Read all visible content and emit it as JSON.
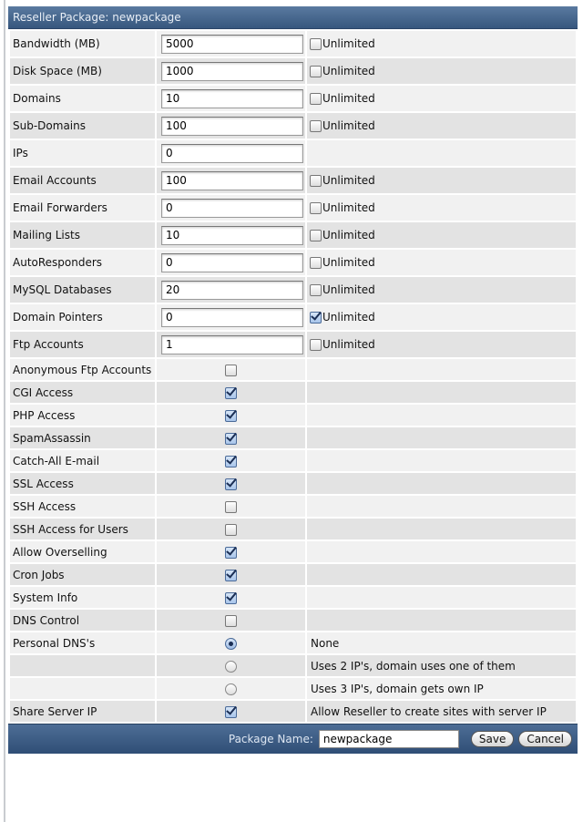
{
  "title": "Reseller Package: newpackage",
  "unlimited_label": "Unlimited",
  "numeric_rows": [
    {
      "label": "Bandwidth (MB)",
      "value": "5000",
      "unlimited": false,
      "has_unlimited": true
    },
    {
      "label": "Disk Space (MB)",
      "value": "1000",
      "unlimited": false,
      "has_unlimited": true
    },
    {
      "label": "Domains",
      "value": "10",
      "unlimited": false,
      "has_unlimited": true
    },
    {
      "label": "Sub-Domains",
      "value": "100",
      "unlimited": false,
      "has_unlimited": true
    },
    {
      "label": "IPs",
      "value": "0",
      "unlimited": false,
      "has_unlimited": false
    },
    {
      "label": "Email Accounts",
      "value": "100",
      "unlimited": false,
      "has_unlimited": true
    },
    {
      "label": "Email Forwarders",
      "value": "0",
      "unlimited": false,
      "has_unlimited": true
    },
    {
      "label": "Mailing Lists",
      "value": "10",
      "unlimited": false,
      "has_unlimited": true
    },
    {
      "label": "AutoResponders",
      "value": "0",
      "unlimited": false,
      "has_unlimited": true
    },
    {
      "label": "MySQL Databases",
      "value": "20",
      "unlimited": false,
      "has_unlimited": true
    },
    {
      "label": "Domain Pointers",
      "value": "0",
      "unlimited": true,
      "has_unlimited": true
    },
    {
      "label": "Ftp Accounts",
      "value": "1",
      "unlimited": false,
      "has_unlimited": true
    }
  ],
  "feature_rows": [
    {
      "label": "Anonymous Ftp Accounts",
      "checked": false
    },
    {
      "label": "CGI Access",
      "checked": true
    },
    {
      "label": "PHP Access",
      "checked": true
    },
    {
      "label": "SpamAssassin",
      "checked": true
    },
    {
      "label": "Catch-All E-mail",
      "checked": true
    },
    {
      "label": "SSL Access",
      "checked": true
    },
    {
      "label": "SSH Access",
      "checked": false
    },
    {
      "label": "SSH Access for Users",
      "checked": false
    },
    {
      "label": "Allow Overselling",
      "checked": true
    },
    {
      "label": "Cron Jobs",
      "checked": true
    },
    {
      "label": "System Info",
      "checked": true
    },
    {
      "label": "DNS Control",
      "checked": false
    }
  ],
  "personal_dns": {
    "label": "Personal DNS's",
    "options": [
      {
        "label": "None",
        "selected": true
      },
      {
        "label": "Uses 2 IP's, domain uses one of them",
        "selected": false
      },
      {
        "label": "Uses 3 IP's, domain gets own IP",
        "selected": false
      }
    ]
  },
  "share_server_ip": {
    "label": "Share Server IP",
    "checked": true,
    "description": "Allow Reseller to create sites with server IP"
  },
  "footer": {
    "package_name_label": "Package Name:",
    "package_name_value": "newpackage",
    "save_label": "Save",
    "cancel_label": "Cancel"
  }
}
